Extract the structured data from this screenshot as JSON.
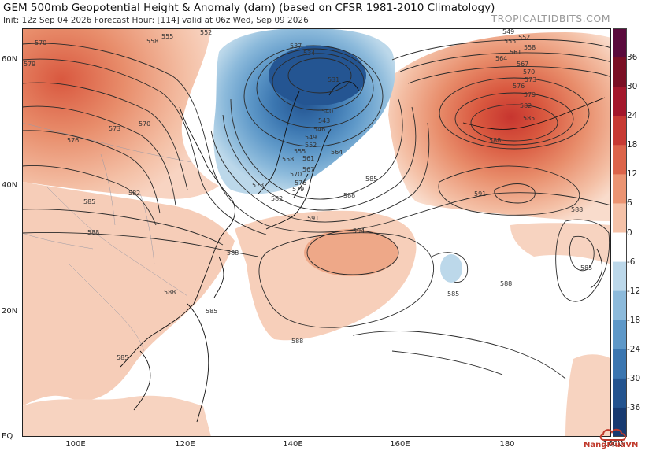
{
  "header": {
    "title": "GEM 500mb Geopotential Height & Anomaly (dam) (based on CFSR 1981-2010 Climatology)",
    "info": "Init: 12z Sep 04 2026   Forecast Hour: [114]   valid at 06z Wed, Sep 09 2026",
    "site": "TROPICALTIDBITS.COM"
  },
  "axes": {
    "lat_labels": [
      "60N",
      "40N",
      "20N",
      "EQ"
    ],
    "lon_labels": [
      "100E",
      "120E",
      "140E",
      "160E",
      "180",
      "160W"
    ]
  },
  "colorbar": {
    "labels": [
      "36",
      "30",
      "24",
      "18",
      "12",
      "6",
      "0",
      "-6",
      "-12",
      "-18",
      "-24",
      "-30",
      "-36"
    ],
    "colors": [
      "#5a0a3c",
      "#7a0f24",
      "#a3172b",
      "#c73a33",
      "#dc644a",
      "#eb9472",
      "#f5c2a8",
      "#ffffff",
      "#bcd8ea",
      "#8cbadb",
      "#5e98c8",
      "#3b76b0",
      "#24548f",
      "#173a70"
    ]
  },
  "contour_labels": [
    "570",
    "579",
    "555",
    "558",
    "552",
    "537",
    "534",
    "531",
    "540",
    "543",
    "546",
    "549",
    "552",
    "555",
    "558",
    "561",
    "564",
    "567",
    "570",
    "573",
    "576",
    "579",
    "582",
    "585",
    "588",
    "591",
    "594",
    "549",
    "552",
    "555",
    "558",
    "561",
    "564",
    "567",
    "570",
    "573",
    "576",
    "579",
    "582",
    "585",
    "588",
    "591",
    "588",
    "585",
    "588",
    "585",
    "573",
    "576",
    "570",
    "582",
    "585",
    "588",
    "588",
    "588",
    "585",
    "585",
    "588"
  ],
  "watermark": {
    "text": "NangMuaVN"
  }
}
